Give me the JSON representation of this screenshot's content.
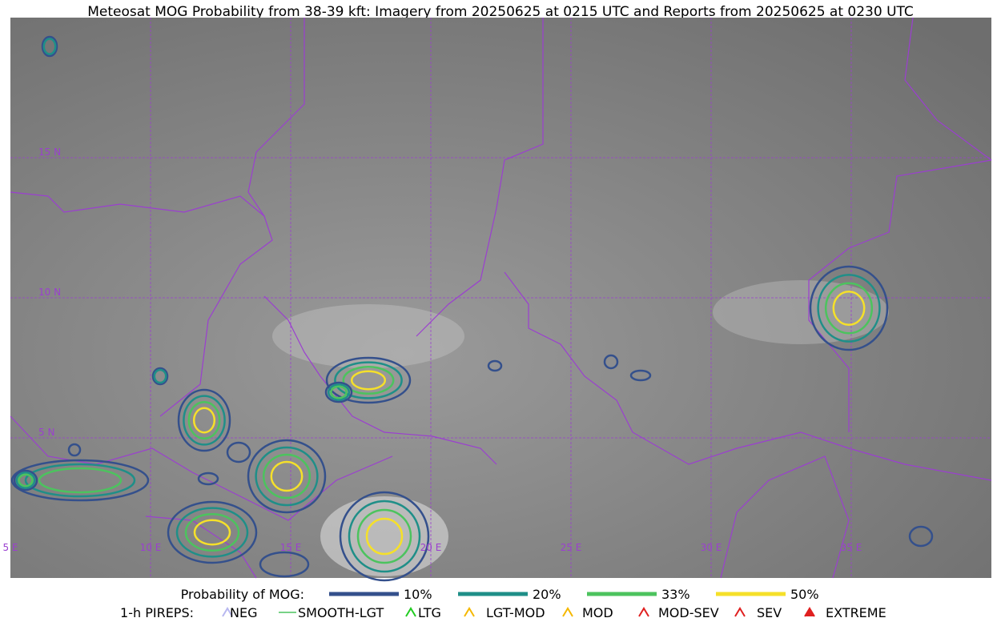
{
  "title": "Meteosat MOG Probability from 38-39 kft: Imagery from 20250625 at 0215 UTC and Reports from 20250625 at 0230 UTC",
  "map": {
    "lat_labels": [
      "15 N",
      "10 N",
      "5 N"
    ],
    "lon_labels": [
      "5 E",
      "10 E",
      "15 E",
      "20 E",
      "25 E",
      "30 E",
      "35 E"
    ]
  },
  "legend": {
    "probability": {
      "title": "Probability of MOG:",
      "items": [
        "10%",
        "20%",
        "33%",
        "50%"
      ]
    },
    "pireps": {
      "title": "1-h PIREPS:",
      "items": [
        "NEG",
        "SMOOTH-LGT",
        "LTG",
        "LGT-MOD",
        "MOD",
        "MOD-SEV",
        "SEV",
        "EXTREME"
      ]
    }
  }
}
